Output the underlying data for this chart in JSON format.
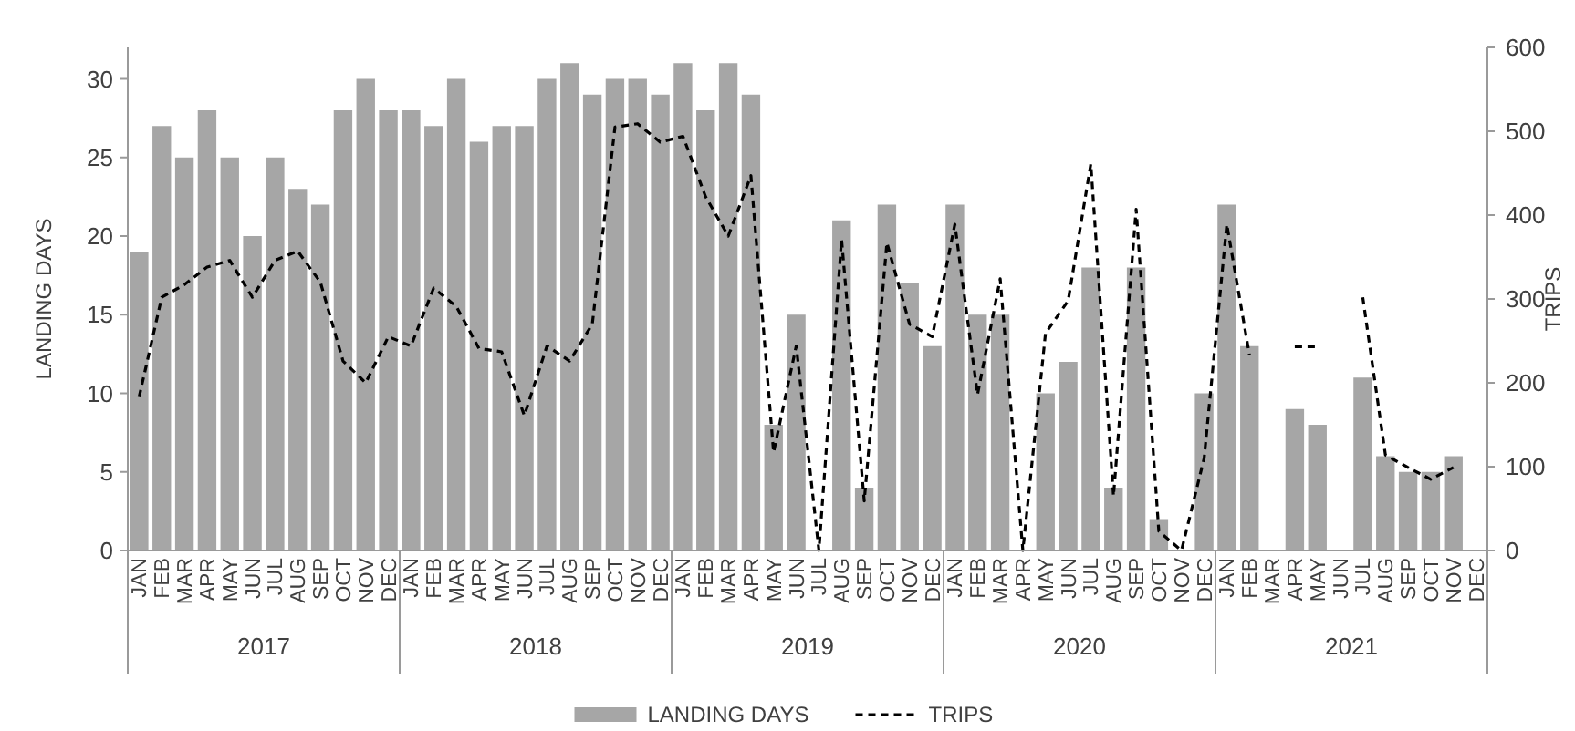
{
  "chart_data": {
    "type": "bar",
    "ylabel": "LANDING DAYS",
    "y2label": "TRIPS",
    "categories": [
      "JAN",
      "FEB",
      "MAR",
      "APR",
      "MAY",
      "JUN",
      "JUL",
      "AUG",
      "SEP",
      "OCT",
      "NOV",
      "DEC",
      "JAN",
      "FEB",
      "MAR",
      "APR",
      "MAY",
      "JUN",
      "JUL",
      "AUG",
      "SEP",
      "OCT",
      "NOV",
      "DEC",
      "JAN",
      "FEB",
      "MAR",
      "APR",
      "MAY",
      "JUN",
      "JUL",
      "AUG",
      "SEP",
      "OCT",
      "NOV",
      "DEC",
      "JAN",
      "FEB",
      "MAR",
      "APR",
      "MAY",
      "JUN",
      "JUL",
      "AUG",
      "SEP",
      "OCT",
      "NOV",
      "DEC",
      "JAN",
      "FEB",
      "MAR",
      "APR",
      "MAY",
      "JUN",
      "JUL",
      "AUG",
      "SEP",
      "OCT",
      "NOV",
      "DEC"
    ],
    "series": [
      {
        "name": "LANDING DAYS",
        "color": "#a6a6a6",
        "values": [
          19,
          27,
          25,
          28,
          25,
          20,
          25,
          23,
          22,
          28,
          30,
          28,
          28,
          27,
          30,
          26,
          27,
          27,
          30,
          31,
          29,
          30,
          30,
          29,
          31,
          28,
          31,
          29,
          8,
          15,
          0,
          21,
          4,
          22,
          17,
          13,
          22,
          15,
          15,
          0,
          10,
          12,
          18,
          4,
          18,
          2,
          0,
          10,
          22,
          13,
          0,
          9,
          8,
          0,
          11,
          6,
          5,
          5,
          6,
          0
        ]
      },
      {
        "name": "TRIPS",
        "type": "line",
        "axis": "y2",
        "color": "#000000",
        "line_style": "dashed",
        "values": [
          183,
          302,
          317,
          338,
          346,
          302,
          346,
          357,
          320,
          226,
          200,
          255,
          244,
          313,
          291,
          241,
          237,
          161,
          244,
          226,
          270,
          505,
          509,
          487,
          494,
          422,
          375,
          447,
          117,
          244,
          0,
          371,
          59,
          367,
          270,
          255,
          389,
          186,
          324,
          0,
          259,
          298,
          461,
          65,
          407,
          23,
          0,
          110,
          389,
          233,
          null,
          243,
          243,
          null,
          302,
          114,
          99,
          85,
          99,
          null
        ]
      }
    ],
    "annotations": [
      "2017",
      "2018",
      "2019",
      "2020",
      "2021"
    ],
    "ylim": [
      0,
      32
    ],
    "yticks": [
      0,
      5,
      10,
      15,
      20,
      25,
      30
    ],
    "y2lim": [
      0,
      600
    ],
    "y2ticks": [
      0,
      100,
      200,
      300,
      400,
      500,
      600
    ],
    "grid": false,
    "legend": "bottom"
  }
}
